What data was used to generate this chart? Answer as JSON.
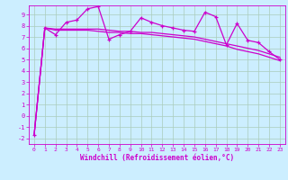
{
  "xlabel": "Windchill (Refroidissement éolien,°C)",
  "bg_color": "#cceeff",
  "grid_color": "#aaccbb",
  "line_color": "#cc00cc",
  "xlim": [
    -0.5,
    23.5
  ],
  "ylim": [
    -2.5,
    9.8
  ],
  "xticks": [
    0,
    1,
    2,
    3,
    4,
    5,
    6,
    7,
    8,
    9,
    10,
    11,
    12,
    13,
    14,
    15,
    16,
    17,
    18,
    19,
    20,
    21,
    22,
    23
  ],
  "yticks": [
    -2,
    -1,
    0,
    1,
    2,
    3,
    4,
    5,
    6,
    7,
    8,
    9
  ],
  "series": [
    [
      0,
      -1.7
    ],
    [
      1,
      7.8
    ],
    [
      2,
      7.2
    ],
    [
      3,
      8.3
    ],
    [
      4,
      8.5
    ],
    [
      5,
      9.5
    ],
    [
      6,
      9.7
    ],
    [
      7,
      6.8
    ],
    [
      8,
      7.2
    ],
    [
      9,
      7.5
    ],
    [
      10,
      8.7
    ],
    [
      11,
      8.3
    ],
    [
      12,
      8.0
    ],
    [
      13,
      7.8
    ],
    [
      14,
      7.6
    ],
    [
      15,
      7.5
    ],
    [
      16,
      9.2
    ],
    [
      17,
      8.8
    ],
    [
      18,
      6.3
    ],
    [
      19,
      8.2
    ],
    [
      20,
      6.7
    ],
    [
      21,
      6.5
    ],
    [
      22,
      5.7
    ],
    [
      23,
      5.0
    ]
  ],
  "trend_series": [
    [
      0,
      -1.7
    ],
    [
      1,
      7.8
    ],
    [
      2,
      7.7
    ],
    [
      3,
      7.7
    ],
    [
      4,
      7.7
    ],
    [
      5,
      7.7
    ],
    [
      6,
      7.7
    ],
    [
      7,
      7.6
    ],
    [
      8,
      7.5
    ],
    [
      9,
      7.5
    ],
    [
      10,
      7.4
    ],
    [
      11,
      7.4
    ],
    [
      12,
      7.3
    ],
    [
      13,
      7.2
    ],
    [
      14,
      7.1
    ],
    [
      15,
      7.0
    ],
    [
      16,
      6.8
    ],
    [
      17,
      6.6
    ],
    [
      18,
      6.4
    ],
    [
      19,
      6.2
    ],
    [
      20,
      6.0
    ],
    [
      21,
      5.8
    ],
    [
      22,
      5.5
    ],
    [
      23,
      5.2
    ]
  ],
  "trend2_series": [
    [
      0,
      -1.7
    ],
    [
      1,
      7.8
    ],
    [
      2,
      7.6
    ],
    [
      3,
      7.6
    ],
    [
      4,
      7.6
    ],
    [
      5,
      7.6
    ],
    [
      6,
      7.5
    ],
    [
      7,
      7.4
    ],
    [
      8,
      7.4
    ],
    [
      9,
      7.3
    ],
    [
      10,
      7.3
    ],
    [
      11,
      7.2
    ],
    [
      12,
      7.1
    ],
    [
      13,
      7.0
    ],
    [
      14,
      6.9
    ],
    [
      15,
      6.8
    ],
    [
      16,
      6.6
    ],
    [
      17,
      6.4
    ],
    [
      18,
      6.2
    ],
    [
      19,
      5.9
    ],
    [
      20,
      5.7
    ],
    [
      21,
      5.5
    ],
    [
      22,
      5.2
    ],
    [
      23,
      4.9
    ]
  ]
}
